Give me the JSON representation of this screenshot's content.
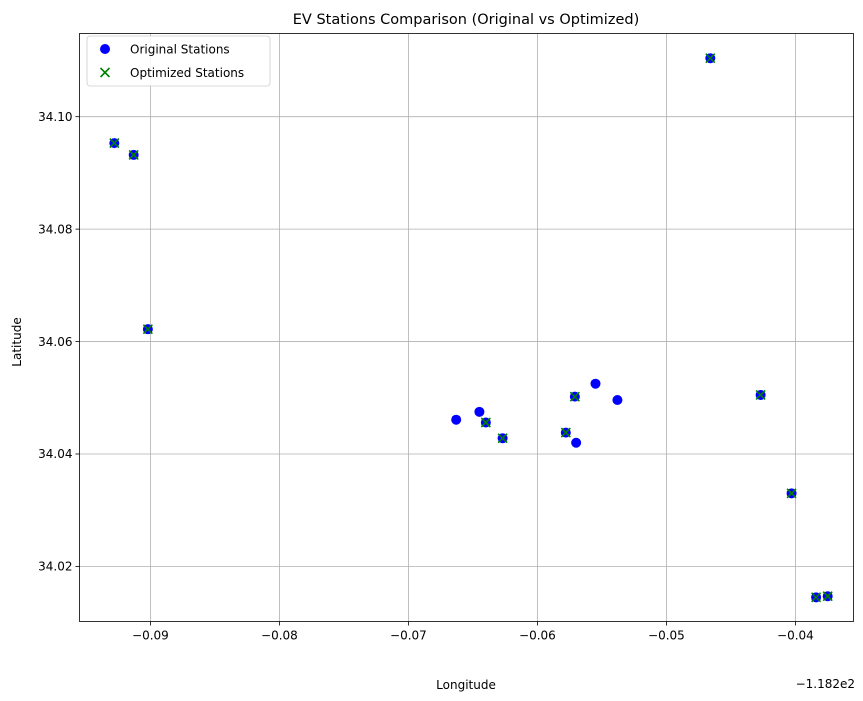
{
  "chart_data": {
    "type": "scatter",
    "title": "EV Stations Comparison (Original vs Optimized)",
    "xlabel": "Longitude",
    "ylabel": "Latitude",
    "x_offset_label": "−1.182e2",
    "xlim": [
      -0.0955,
      -0.0355
    ],
    "ylim": [
      34.0102,
      34.1148
    ],
    "x_ticks": [
      -0.09,
      -0.08,
      -0.07,
      -0.06,
      -0.05,
      -0.04
    ],
    "x_tick_labels": [
      "−0.09",
      "−0.08",
      "−0.07",
      "−0.06",
      "−0.05",
      "−0.04"
    ],
    "y_ticks": [
      34.02,
      34.04,
      34.06,
      34.08,
      34.1
    ],
    "y_tick_labels": [
      "34.02",
      "34.04",
      "34.06",
      "34.08",
      "34.10"
    ],
    "grid": true,
    "legend_position": "top-left",
    "series": [
      {
        "name": "Original Stations",
        "marker": "circle",
        "color": "#0000ff",
        "points": [
          [
            -0.0928,
            34.0953
          ],
          [
            -0.0913,
            34.0932
          ],
          [
            -0.0902,
            34.0622
          ],
          [
            -0.0663,
            34.0461
          ],
          [
            -0.0645,
            34.0475
          ],
          [
            -0.064,
            34.0456
          ],
          [
            -0.0627,
            34.0428
          ],
          [
            -0.0578,
            34.0438
          ],
          [
            -0.0571,
            34.0502
          ],
          [
            -0.057,
            34.042
          ],
          [
            -0.0555,
            34.0525
          ],
          [
            -0.0538,
            34.0496
          ],
          [
            -0.0466,
            34.1104
          ],
          [
            -0.0427,
            34.0505
          ],
          [
            -0.0403,
            34.033
          ],
          [
            -0.0384,
            34.0145
          ],
          [
            -0.0375,
            34.0147
          ]
        ]
      },
      {
        "name": "Optimized Stations",
        "marker": "x",
        "color": "#008000",
        "points": [
          [
            -0.0928,
            34.0953
          ],
          [
            -0.0913,
            34.0932
          ],
          [
            -0.0902,
            34.0622
          ],
          [
            -0.064,
            34.0456
          ],
          [
            -0.0627,
            34.0428
          ],
          [
            -0.0578,
            34.0438
          ],
          [
            -0.0571,
            34.0502
          ],
          [
            -0.0466,
            34.1104
          ],
          [
            -0.0427,
            34.0505
          ],
          [
            -0.0403,
            34.033
          ],
          [
            -0.0384,
            34.0145
          ],
          [
            -0.0375,
            34.0147
          ]
        ]
      }
    ]
  }
}
